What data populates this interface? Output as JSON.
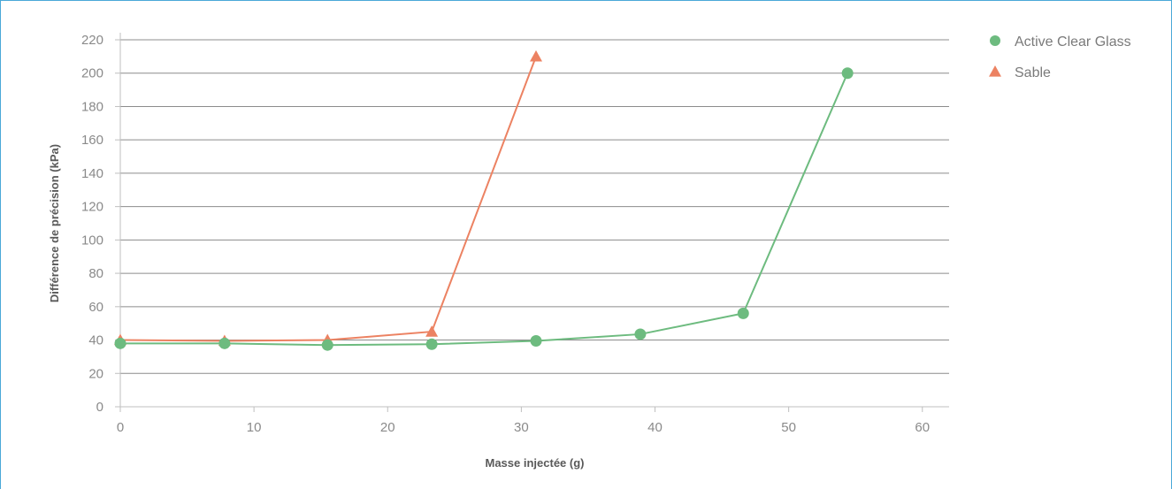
{
  "chart_data": {
    "type": "line",
    "xlabel": "Masse injectée (g)",
    "ylabel": "Différence de précision (kPa)",
    "xlim": [
      0,
      62
    ],
    "ylim": [
      0,
      220
    ],
    "x_ticks": [
      "0",
      "10",
      "20",
      "30",
      "40",
      "50",
      "60"
    ],
    "y_ticks": [
      "0",
      "20",
      "40",
      "60",
      "80",
      "100",
      "120",
      "140",
      "160",
      "180",
      "200",
      "220"
    ],
    "grid": "horizontal",
    "legend_position": "top-right",
    "series": [
      {
        "name": "Active Clear Glass",
        "marker": "circle",
        "color": "#6dbb7f",
        "points": [
          [
            0,
            38
          ],
          [
            7.8,
            38
          ],
          [
            15.5,
            37
          ],
          [
            23.3,
            37.5
          ],
          [
            31.1,
            39.5
          ],
          [
            38.9,
            43.5
          ],
          [
            46.6,
            56
          ],
          [
            54.4,
            200
          ]
        ]
      },
      {
        "name": "Sable",
        "marker": "triangle",
        "color": "#ec8262",
        "points": [
          [
            0,
            40
          ],
          [
            7.8,
            39.5
          ],
          [
            15.5,
            40
          ],
          [
            23.3,
            45
          ],
          [
            31.1,
            210
          ]
        ]
      }
    ]
  }
}
